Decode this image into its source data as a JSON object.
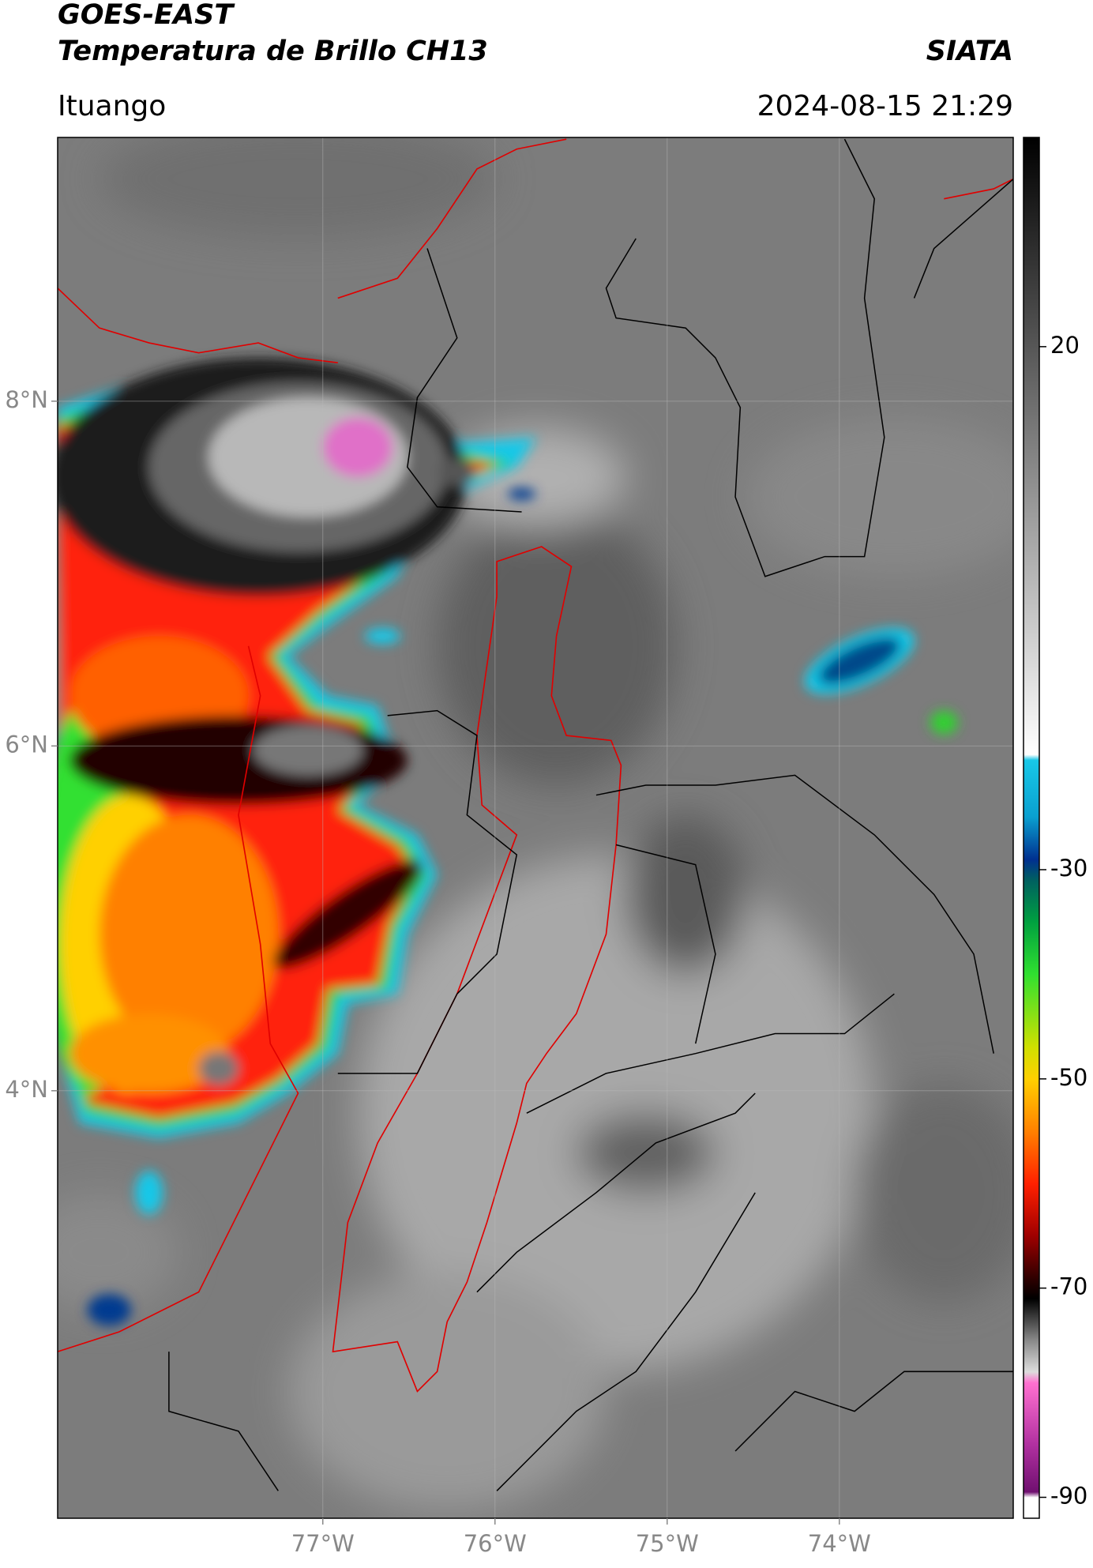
{
  "header": {
    "satellite": "GOES-EAST",
    "product": "Temperatura de Brillo CH13",
    "source": "SIATA",
    "location": "Ituango",
    "datetime": "2024-08-15 21:29"
  },
  "map": {
    "xlim": [
      -78.54,
      -72.99
    ],
    "ylim": [
      1.52,
      9.53
    ],
    "xticks": [
      {
        "value": -77,
        "label": "77°W"
      },
      {
        "value": -76,
        "label": "76°W"
      },
      {
        "value": -75,
        "label": "75°W"
      },
      {
        "value": -74,
        "label": "74°W"
      }
    ],
    "yticks": [
      {
        "value": 8,
        "label": "8°N"
      },
      {
        "value": 6,
        "label": "6°N"
      },
      {
        "value": 4,
        "label": "4°N"
      }
    ],
    "grid": true,
    "colorbar": {
      "lim": [
        -92,
        40
      ],
      "ticks": [
        20,
        -30,
        -50,
        -70,
        -90
      ]
    }
  }
}
